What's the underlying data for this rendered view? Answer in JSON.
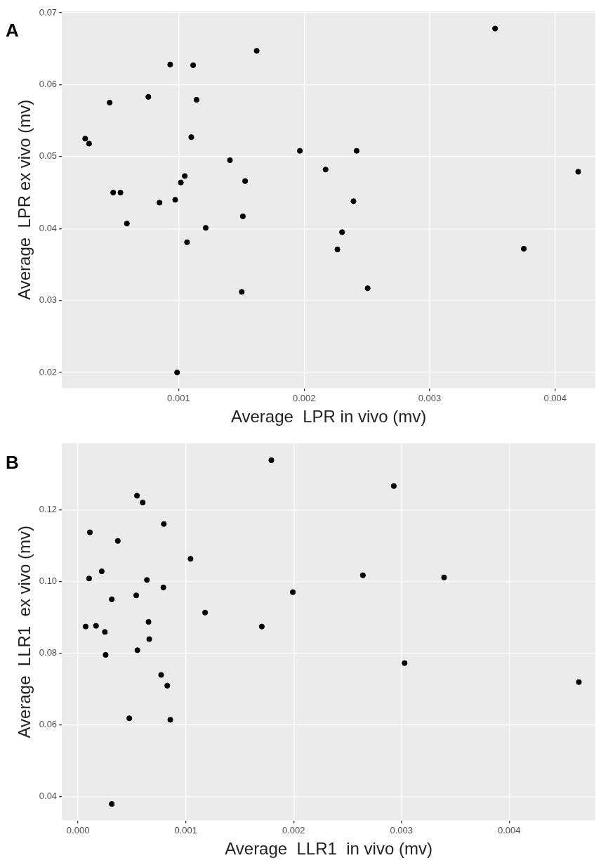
{
  "chart_data": [
    {
      "type": "scatter",
      "title": "A",
      "xlabel": "Average  LPR in vivo (mv)",
      "ylabel": "Average  LPR ex vivo (mv)",
      "marker": "circle",
      "grid": true,
      "legend": false,
      "xlim": [
        7e-05,
        0.00432
      ],
      "ylim": [
        0.0178,
        0.0702
      ],
      "xticks": [
        0.001,
        0.002,
        0.003,
        0.004
      ],
      "yticks": [
        0.02,
        0.03,
        0.04,
        0.05,
        0.06,
        0.07
      ],
      "series": [
        {
          "color": "#000000",
          "x": [
            0.000256,
            0.000287,
            0.000451,
            0.000479,
            0.000537,
            0.000588,
            0.000759,
            0.000848,
            0.000933,
            0.000973,
            0.000988,
            0.001018,
            0.001049,
            0.001067,
            0.001101,
            0.001116,
            0.001143,
            0.001216,
            0.001409,
            0.001503,
            0.001512,
            0.00153,
            0.001622,
            0.001966,
            0.002171,
            0.002265,
            0.002302,
            0.002393,
            0.002418,
            0.002506,
            0.003521,
            0.00375,
            0.004183
          ],
          "values": [
            0.0525,
            0.0518,
            0.0575,
            0.045,
            0.045,
            0.0407,
            0.0583,
            0.0436,
            0.0628,
            0.044,
            0.02,
            0.0464,
            0.0473,
            0.0381,
            0.0527,
            0.0627,
            0.0579,
            0.0401,
            0.0495,
            0.0312,
            0.0417,
            0.0466,
            0.0647,
            0.0508,
            0.0482,
            0.0371,
            0.0395,
            0.0438,
            0.0508,
            0.0317,
            0.0678,
            0.0372,
            0.0479
          ]
        }
      ]
    },
    {
      "type": "scatter",
      "title": "B",
      "xlabel": "Average  LLR1  in vivo (mv)",
      "ylabel": "Average  LLR1  ex vivo (mv)",
      "marker": "circle",
      "grid": true,
      "legend": false,
      "xlim": [
        -0.00015,
        0.0048
      ],
      "ylim": [
        0.0333,
        0.1385
      ],
      "xticks": [
        {
          "value": 0,
          "label": "0.000"
        },
        0.001,
        0.002,
        0.003,
        0.004
      ],
      "yticks": [
        0.04,
        0.06,
        0.08,
        {
          "value": 0.1,
          "label": "0.10"
        },
        0.12
      ],
      "series": [
        {
          "color": "#000000",
          "x": [
            0.001794,
            0.00293,
            0.000547,
            0.0006,
            0.000796,
            0.00011,
            0.000369,
            0.001044,
            0.00022,
            0.000103,
            0.000639,
            0.002643,
            0.003396,
            0.000792,
            0.001993,
            0.00054,
            0.000313,
            0.001179,
            0.000654,
            7.1e-05,
            0.000167,
            0.001705,
            0.000249,
            0.000661,
            0.000551,
            0.000256,
            0.00303,
            0.000771,
            0.000828,
            0.004647,
            0.000476,
            0.000856,
            0.000313
          ],
          "values": [
            0.1338,
            0.1266,
            0.1239,
            0.122,
            0.116,
            0.1137,
            0.1113,
            0.1063,
            0.1028,
            0.1008,
            0.1004,
            0.1017,
            0.1011,
            0.0983,
            0.097,
            0.0961,
            0.095,
            0.0913,
            0.0887,
            0.0874,
            0.0876,
            0.0874,
            0.0859,
            0.0839,
            0.0808,
            0.0795,
            0.0772,
            0.0739,
            0.0709,
            0.0719,
            0.0618,
            0.0614,
            0.0379
          ]
        }
      ]
    }
  ]
}
